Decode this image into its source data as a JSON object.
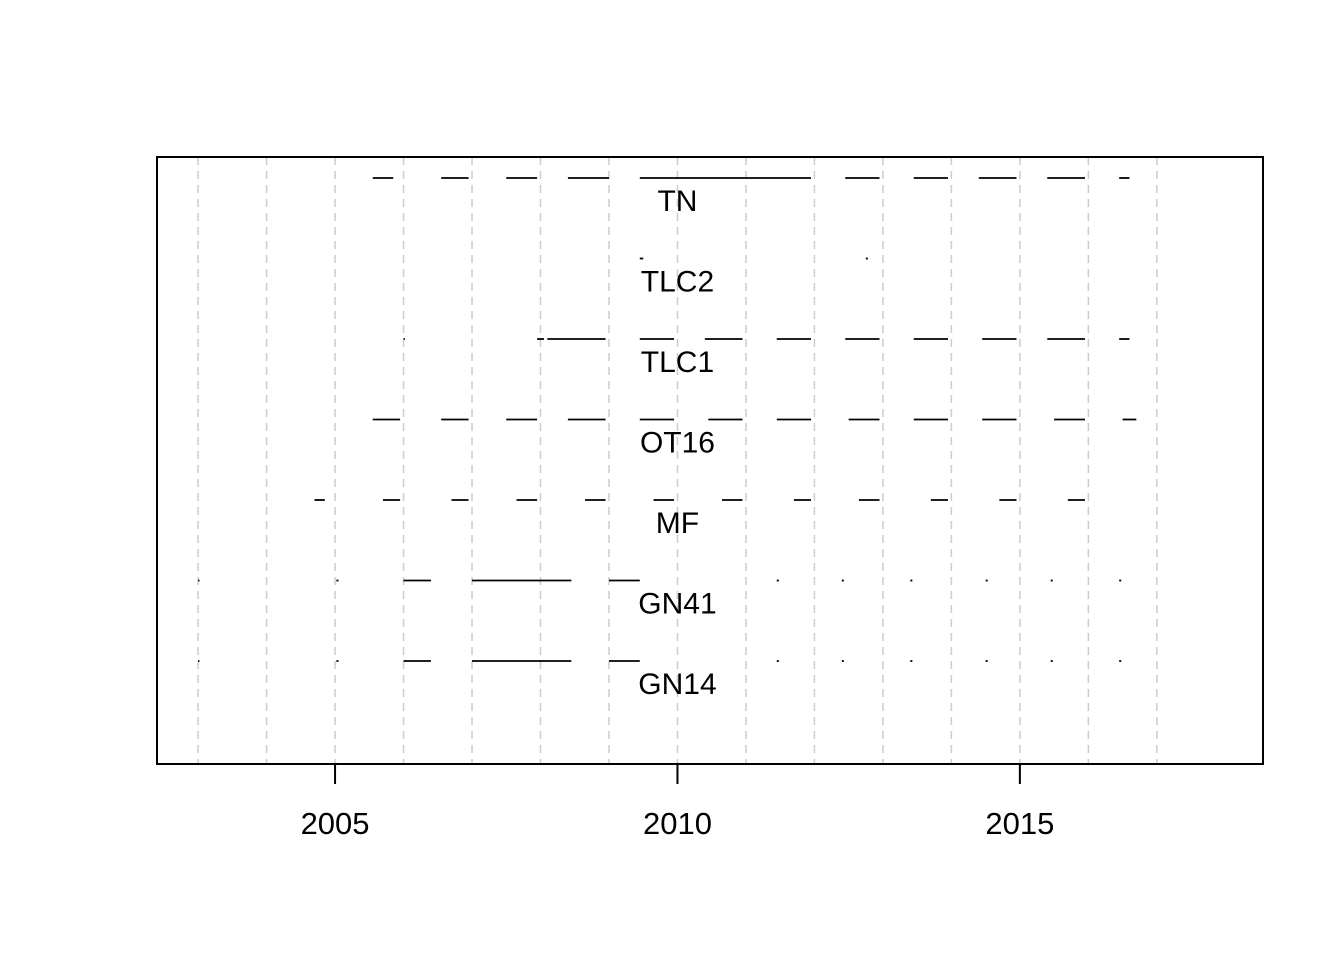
{
  "chart_data": {
    "type": "timeline",
    "title": "",
    "xlabel": "",
    "ylabel": "",
    "xlim": [
      2002.4,
      2018.55
    ],
    "x_ticks": [
      2005,
      2010,
      2015
    ],
    "x_tick_labels": [
      "2005",
      "2010",
      "2015"
    ],
    "year_gridlines": [
      2003,
      2004,
      2005,
      2006,
      2007,
      2008,
      2009,
      2010,
      2011,
      2012,
      2013,
      2014,
      2015,
      2016,
      2017
    ],
    "grid": "vertical dashed lines at each year",
    "series": [
      {
        "name": "TN",
        "segments": [
          [
            2005.55,
            2005.85
          ],
          [
            2006.55,
            2006.95
          ],
          [
            2007.5,
            2007.95
          ],
          [
            2008.4,
            2009.0
          ],
          [
            2009.45,
            2011.0
          ],
          [
            2011.0,
            2011.95
          ],
          [
            2012.45,
            2012.95
          ],
          [
            2013.45,
            2013.95
          ],
          [
            2014.4,
            2014.95
          ],
          [
            2015.4,
            2015.95
          ],
          [
            2016.45,
            2016.6
          ]
        ]
      },
      {
        "name": "TLC2",
        "segments": [
          [
            2009.45,
            2009.5
          ],
          [
            2012.75,
            2012.78
          ]
        ]
      },
      {
        "name": "TLC1",
        "segments": [
          [
            2006.0,
            2006.02
          ],
          [
            2007.95,
            2008.05
          ],
          [
            2008.1,
            2008.95
          ],
          [
            2009.45,
            2009.95
          ],
          [
            2010.4,
            2010.95
          ],
          [
            2011.45,
            2011.95
          ],
          [
            2012.45,
            2012.95
          ],
          [
            2013.45,
            2013.95
          ],
          [
            2014.45,
            2014.95
          ],
          [
            2015.4,
            2015.95
          ],
          [
            2016.45,
            2016.6
          ]
        ]
      },
      {
        "name": "OT16",
        "segments": [
          [
            2005.55,
            2005.95
          ],
          [
            2006.55,
            2006.95
          ],
          [
            2007.5,
            2007.95
          ],
          [
            2008.4,
            2008.95
          ],
          [
            2009.45,
            2009.95
          ],
          [
            2010.45,
            2010.95
          ],
          [
            2011.45,
            2011.95
          ],
          [
            2012.5,
            2012.95
          ],
          [
            2013.45,
            2013.95
          ],
          [
            2014.45,
            2014.95
          ],
          [
            2015.5,
            2015.95
          ],
          [
            2016.5,
            2016.7
          ]
        ]
      },
      {
        "name": "MF",
        "segments": [
          [
            2004.7,
            2004.85
          ],
          [
            2005.7,
            2005.95
          ],
          [
            2006.7,
            2006.95
          ],
          [
            2007.65,
            2007.95
          ],
          [
            2008.65,
            2008.95
          ],
          [
            2009.65,
            2009.95
          ],
          [
            2010.65,
            2010.95
          ],
          [
            2011.7,
            2011.95
          ],
          [
            2012.65,
            2012.95
          ],
          [
            2013.7,
            2013.95
          ],
          [
            2014.7,
            2014.95
          ],
          [
            2015.7,
            2015.95
          ]
        ]
      },
      {
        "name": "GN41",
        "segments": [
          [
            2003.0,
            2003.02
          ],
          [
            2005.02,
            2005.05
          ],
          [
            2006.0,
            2006.4
          ],
          [
            2007.0,
            2008.0
          ],
          [
            2008.0,
            2008.45
          ],
          [
            2009.0,
            2009.45
          ],
          [
            2011.45,
            2011.48
          ],
          [
            2012.4,
            2012.43
          ],
          [
            2013.4,
            2013.43
          ],
          [
            2014.5,
            2014.53
          ],
          [
            2015.45,
            2015.48
          ],
          [
            2016.45,
            2016.48
          ]
        ]
      },
      {
        "name": "GN14",
        "segments": [
          [
            2003.0,
            2003.02
          ],
          [
            2005.02,
            2005.05
          ],
          [
            2006.0,
            2006.4
          ],
          [
            2007.0,
            2008.0
          ],
          [
            2008.0,
            2008.45
          ],
          [
            2009.0,
            2009.45
          ],
          [
            2011.45,
            2011.48
          ],
          [
            2012.4,
            2012.43
          ],
          [
            2013.4,
            2013.43
          ],
          [
            2014.5,
            2014.53
          ],
          [
            2015.45,
            2015.48
          ],
          [
            2016.45,
            2016.48
          ]
        ]
      }
    ]
  }
}
